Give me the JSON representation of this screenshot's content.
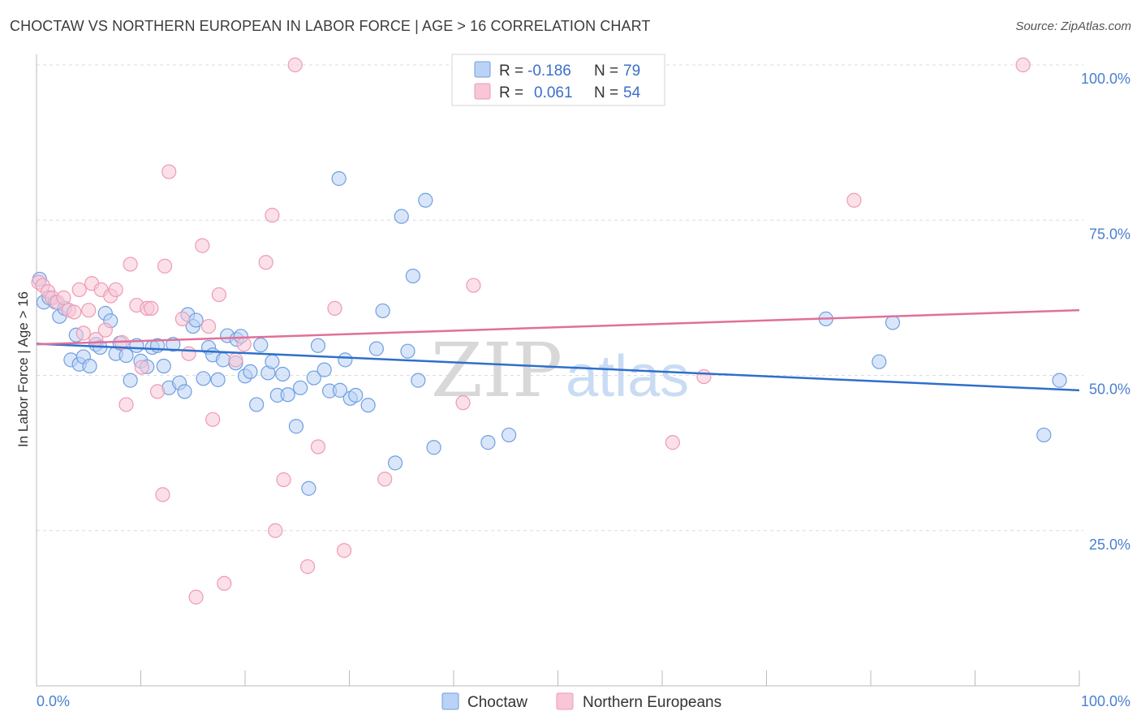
{
  "title": "CHOCTAW VS NORTHERN EUROPEAN IN LABOR FORCE | AGE > 16 CORRELATION CHART",
  "source": "Source: ZipAtlas.com",
  "watermark": "ZIPatlas",
  "colors": {
    "choctaw": "#6f9fe0",
    "choctaw_fill": "#b9d2f5",
    "choctaw_line": "#2f6fcc",
    "northern": "#ee9ab5",
    "northern_fill": "#f8c6d6",
    "northern_line": "#e0709a",
    "tick": "#4a7fd0",
    "grid": "#dcdcdc"
  },
  "legend": {
    "r_label": "R =",
    "n_label": "N =",
    "rows": [
      {
        "series": "Choctaw",
        "r": "-0.186",
        "n": "79"
      },
      {
        "series": "Northern Europeans",
        "r": "0.061",
        "n": "54"
      }
    ]
  },
  "chart_data": {
    "type": "scatter",
    "title": "CHOCTAW VS NORTHERN EUROPEAN IN LABOR FORCE | AGE > 16 CORRELATION CHART",
    "xlabel": "",
    "ylabel": "In Labor Force | Age > 16",
    "xlim": [
      0,
      100
    ],
    "ylim": [
      0,
      100
    ],
    "x_tick_labels": [
      "0.0%",
      "100.0%"
    ],
    "y_tick_labels": [
      {
        "value": 100,
        "label": "100.0%"
      },
      {
        "value": 75,
        "label": "75.0%"
      },
      {
        "value": 50,
        "label": "50.0%"
      },
      {
        "value": 25,
        "label": "25.0%"
      }
    ],
    "grid": true,
    "legend_position": "bottom",
    "series": [
      {
        "name": "Choctaw",
        "r": -0.186,
        "n": 79,
        "trend": {
          "x": [
            0,
            100
          ],
          "y": [
            55.1,
            47.6
          ]
        },
        "points": [
          [
            0.3,
            65.5
          ],
          [
            0.7,
            61.8
          ],
          [
            1.2,
            62.5
          ],
          [
            1.8,
            61.8
          ],
          [
            2.2,
            59.5
          ],
          [
            2.7,
            60.8
          ],
          [
            3.3,
            52.5
          ],
          [
            3.8,
            56.5
          ],
          [
            4.1,
            51.8
          ],
          [
            4.5,
            53.0
          ],
          [
            5.1,
            51.5
          ],
          [
            5.7,
            55.0
          ],
          [
            6.1,
            54.5
          ],
          [
            6.6,
            60.0
          ],
          [
            7.1,
            58.8
          ],
          [
            7.6,
            53.5
          ],
          [
            8.0,
            55.2
          ],
          [
            8.6,
            53.2
          ],
          [
            9.0,
            49.2
          ],
          [
            9.6,
            54.8
          ],
          [
            10.0,
            52.3
          ],
          [
            10.6,
            51.4
          ],
          [
            11.1,
            54.5
          ],
          [
            11.6,
            54.8
          ],
          [
            12.2,
            51.5
          ],
          [
            12.7,
            48.0
          ],
          [
            13.1,
            55.0
          ],
          [
            13.7,
            48.8
          ],
          [
            14.2,
            47.4
          ],
          [
            14.5,
            59.8
          ],
          [
            15.0,
            57.9
          ],
          [
            15.3,
            58.9
          ],
          [
            16.0,
            49.5
          ],
          [
            16.5,
            54.5
          ],
          [
            16.9,
            53.3
          ],
          [
            17.4,
            49.3
          ],
          [
            17.9,
            52.5
          ],
          [
            18.3,
            56.4
          ],
          [
            19.1,
            52.0
          ],
          [
            19.2,
            55.8
          ],
          [
            19.6,
            56.3
          ],
          [
            20.0,
            49.9
          ],
          [
            20.5,
            50.6
          ],
          [
            21.1,
            45.3
          ],
          [
            21.5,
            54.9
          ],
          [
            22.2,
            50.4
          ],
          [
            22.6,
            52.2
          ],
          [
            23.1,
            46.8
          ],
          [
            23.6,
            50.2
          ],
          [
            24.1,
            46.9
          ],
          [
            24.9,
            41.8
          ],
          [
            25.3,
            48.0
          ],
          [
            26.1,
            31.8
          ],
          [
            26.6,
            49.6
          ],
          [
            27.0,
            54.8
          ],
          [
            27.6,
            50.9
          ],
          [
            28.1,
            47.5
          ],
          [
            29.1,
            47.6
          ],
          [
            29.6,
            52.5
          ],
          [
            30.1,
            46.3
          ],
          [
            30.6,
            46.8
          ],
          [
            31.8,
            45.2
          ],
          [
            32.6,
            54.3
          ],
          [
            33.2,
            60.4
          ],
          [
            34.4,
            35.9
          ],
          [
            35.0,
            75.6
          ],
          [
            35.6,
            53.9
          ],
          [
            36.1,
            66.0
          ],
          [
            36.6,
            49.2
          ],
          [
            37.3,
            78.2
          ],
          [
            38.1,
            38.4
          ],
          [
            29.0,
            81.7
          ],
          [
            43.3,
            39.2
          ],
          [
            45.3,
            40.4
          ],
          [
            75.7,
            59.1
          ],
          [
            80.8,
            52.2
          ],
          [
            82.1,
            58.5
          ],
          [
            96.6,
            40.4
          ],
          [
            98.1,
            49.2
          ]
        ]
      },
      {
        "name": "Northern Europeans",
        "r": 0.061,
        "n": 54,
        "trend": {
          "x": [
            0,
            100
          ],
          "y": [
            55.0,
            60.5
          ]
        },
        "points": [
          [
            0.2,
            65.0
          ],
          [
            0.6,
            64.5
          ],
          [
            1.1,
            63.5
          ],
          [
            1.5,
            62.5
          ],
          [
            2.0,
            61.8
          ],
          [
            2.6,
            62.5
          ],
          [
            3.1,
            60.5
          ],
          [
            3.6,
            60.2
          ],
          [
            4.1,
            63.8
          ],
          [
            4.5,
            56.8
          ],
          [
            5.0,
            60.5
          ],
          [
            5.3,
            64.8
          ],
          [
            5.7,
            55.8
          ],
          [
            6.2,
            63.8
          ],
          [
            6.6,
            57.3
          ],
          [
            7.1,
            62.8
          ],
          [
            7.6,
            63.8
          ],
          [
            8.2,
            55.3
          ],
          [
            8.6,
            45.3
          ],
          [
            9.0,
            67.9
          ],
          [
            9.6,
            61.3
          ],
          [
            10.1,
            51.3
          ],
          [
            10.6,
            60.8
          ],
          [
            11.0,
            60.8
          ],
          [
            11.6,
            47.4
          ],
          [
            12.1,
            30.8
          ],
          [
            12.3,
            67.6
          ],
          [
            12.7,
            82.8
          ],
          [
            14.0,
            59.1
          ],
          [
            14.6,
            53.5
          ],
          [
            15.3,
            14.3
          ],
          [
            15.9,
            70.9
          ],
          [
            16.5,
            57.9
          ],
          [
            16.9,
            42.9
          ],
          [
            17.5,
            63.0
          ],
          [
            18.0,
            16.5
          ],
          [
            19.1,
            52.5
          ],
          [
            19.9,
            55.0
          ],
          [
            22.0,
            68.2
          ],
          [
            22.6,
            75.8
          ],
          [
            22.9,
            25.0
          ],
          [
            23.7,
            33.2
          ],
          [
            24.8,
            100.0
          ],
          [
            26.0,
            19.2
          ],
          [
            27.0,
            38.5
          ],
          [
            28.6,
            60.8
          ],
          [
            29.5,
            21.8
          ],
          [
            33.4,
            33.3
          ],
          [
            40.9,
            45.6
          ],
          [
            41.9,
            64.5
          ],
          [
            61.0,
            39.2
          ],
          [
            64.0,
            49.8
          ],
          [
            78.4,
            78.2
          ],
          [
            94.6,
            100.0
          ]
        ]
      }
    ]
  }
}
